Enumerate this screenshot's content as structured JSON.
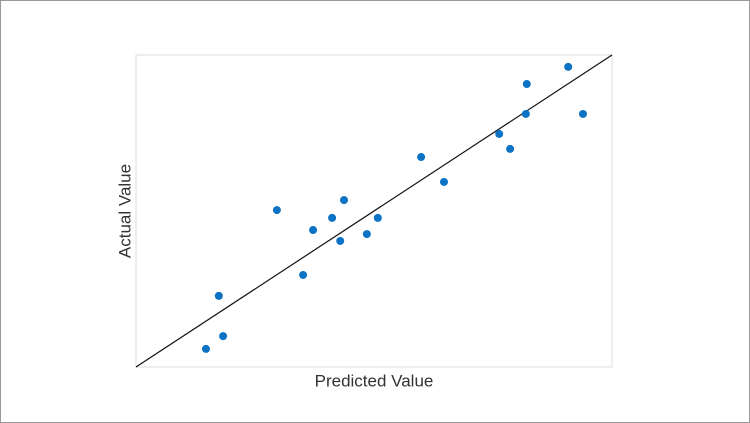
{
  "chart_data": {
    "type": "scatter",
    "x_label": "Predicted Value",
    "y_label": "Actual Value",
    "x": [
      14.7,
      18.3,
      17.4,
      29.6,
      35.1,
      37.2,
      41.2,
      42.9,
      43.7,
      48.5,
      50.8,
      59.9,
      64.7,
      76.3,
      78.6,
      81.9,
      82.1,
      90.8,
      93.9
    ],
    "values": [
      5.8,
      9.9,
      22.8,
      50.3,
      29.5,
      43.9,
      47.8,
      40.4,
      53.5,
      42.6,
      47.8,
      67.3,
      59.3,
      74.7,
      69.9,
      81.1,
      90.7,
      96.2,
      81.1
    ],
    "color": "#0b72c4",
    "xlim": [
      0,
      100
    ],
    "ylim": [
      0,
      100
    ]
  }
}
